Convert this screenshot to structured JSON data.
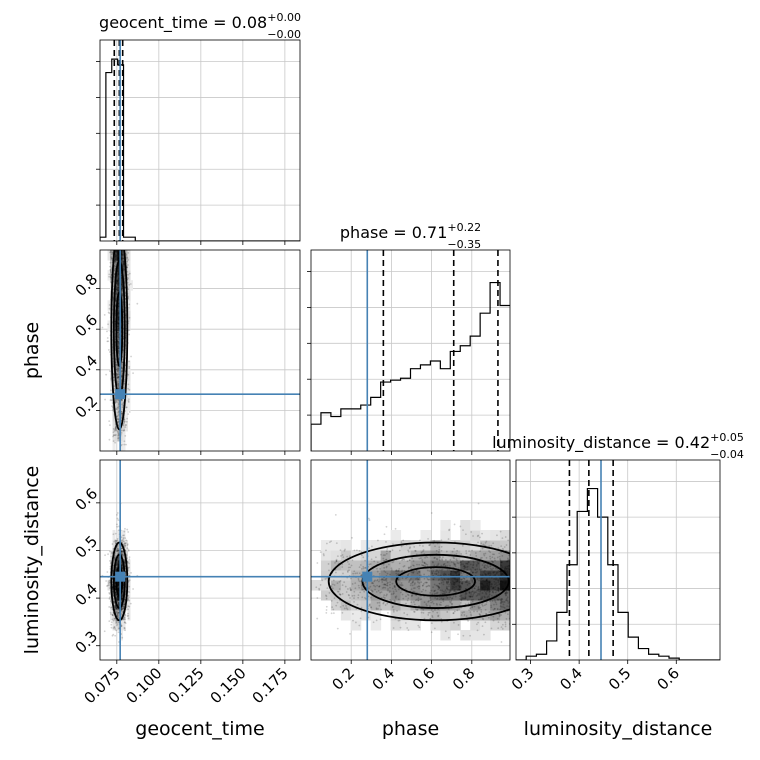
{
  "chart_data": {
    "type": "corner",
    "parameters": [
      "geocent_time",
      "phase",
      "luminosity_distance"
    ],
    "truth": {
      "geocent_time": 0.077,
      "phase": 0.28,
      "luminosity_distance": 0.445
    },
    "truth_color": "#4682b4",
    "diagonal_titles": [
      {
        "label": "geocent_time = 0.08",
        "sup": "+0.00",
        "sub": "−0.00"
      },
      {
        "label": "phase = 0.71",
        "sup": "+0.22",
        "sub": "−0.35"
      },
      {
        "label": "luminosity_distance = 0.42",
        "sup": "+0.05",
        "sub": "−0.04"
      }
    ],
    "axis_labels": {
      "x": [
        "geocent_time",
        "phase",
        "luminosity_distance"
      ],
      "y": [
        "phase",
        "luminosity_distance"
      ]
    },
    "ranges": {
      "geocent_time": [
        0.065,
        0.184
      ],
      "phase": [
        0.0,
        0.99
      ],
      "luminosity_distance": [
        0.27,
        0.69
      ]
    },
    "ticks": {
      "geocent_time": [
        "0.075",
        "0.100",
        "0.125",
        "0.150",
        "0.175"
      ],
      "phase": [
        "0.2",
        "0.4",
        "0.6",
        "0.8"
      ],
      "luminosity_distance": [
        "0.3",
        "0.4",
        "0.5",
        "0.6"
      ]
    },
    "quantiles": {
      "geocent_time": [
        0.0735,
        0.0765,
        0.0785
      ],
      "phase": [
        0.36,
        0.71,
        0.93
      ],
      "luminosity_distance": [
        0.38,
        0.42,
        0.47
      ]
    },
    "hist_1d": {
      "geocent_time": {
        "edges": [
          0.065,
          0.0685,
          0.072,
          0.0755,
          0.079,
          0.0825,
          0.086,
          0.0895
        ],
        "values": [
          0.02,
          0.88,
          0.95,
          0.92,
          0.02,
          0.02,
          0.0
        ]
      },
      "phase": {
        "edges": [
          0.0,
          0.0495,
          0.099,
          0.1485,
          0.198,
          0.2475,
          0.297,
          0.3465,
          0.396,
          0.4455,
          0.495,
          0.5445,
          0.594,
          0.6435,
          0.693,
          0.7425,
          0.792,
          0.8415,
          0.891,
          0.9405,
          0.99
        ],
        "values": [
          0.14,
          0.2,
          0.18,
          0.22,
          0.22,
          0.24,
          0.28,
          0.36,
          0.37,
          0.38,
          0.43,
          0.45,
          0.47,
          0.43,
          0.52,
          0.55,
          0.6,
          0.72,
          0.88,
          0.76
        ]
      },
      "luminosity_distance": {
        "edges": [
          0.27,
          0.291,
          0.312,
          0.333,
          0.354,
          0.375,
          0.396,
          0.417,
          0.438,
          0.459,
          0.48,
          0.501,
          0.522,
          0.543,
          0.564,
          0.585,
          0.606,
          0.627,
          0.648,
          0.669,
          0.69
        ],
        "values": [
          0.0,
          0.02,
          0.03,
          0.1,
          0.25,
          0.5,
          0.78,
          0.9,
          0.75,
          0.5,
          0.25,
          0.12,
          0.06,
          0.03,
          0.02,
          0.01,
          0.0,
          0.0,
          0.0,
          0.0
        ]
      }
    }
  }
}
